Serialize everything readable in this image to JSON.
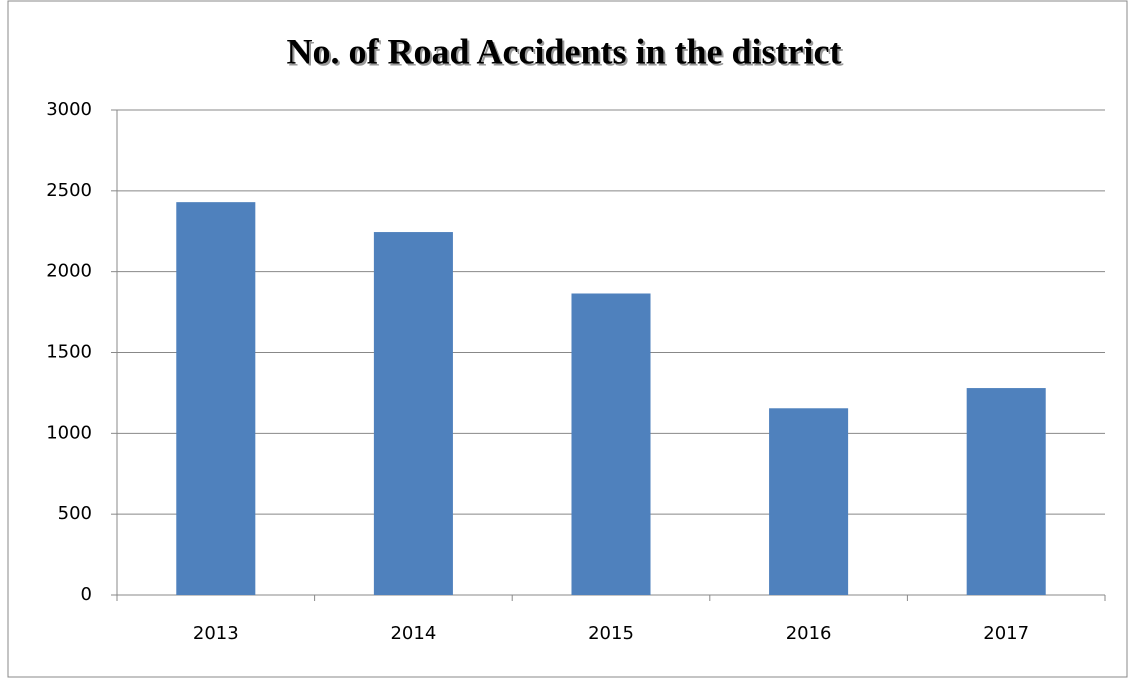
{
  "chart_data": {
    "type": "bar",
    "title": "No. of Road Accidents in the district",
    "categories": [
      "2013",
      "2014",
      "2015",
      "2016",
      "2017"
    ],
    "values": [
      2430,
      2245,
      1865,
      1155,
      1280
    ],
    "color": "#4f81bd",
    "ylim": [
      0,
      3000
    ],
    "yticks": [
      0,
      500,
      1000,
      1500,
      2000,
      2500,
      3000
    ],
    "grid": true
  }
}
